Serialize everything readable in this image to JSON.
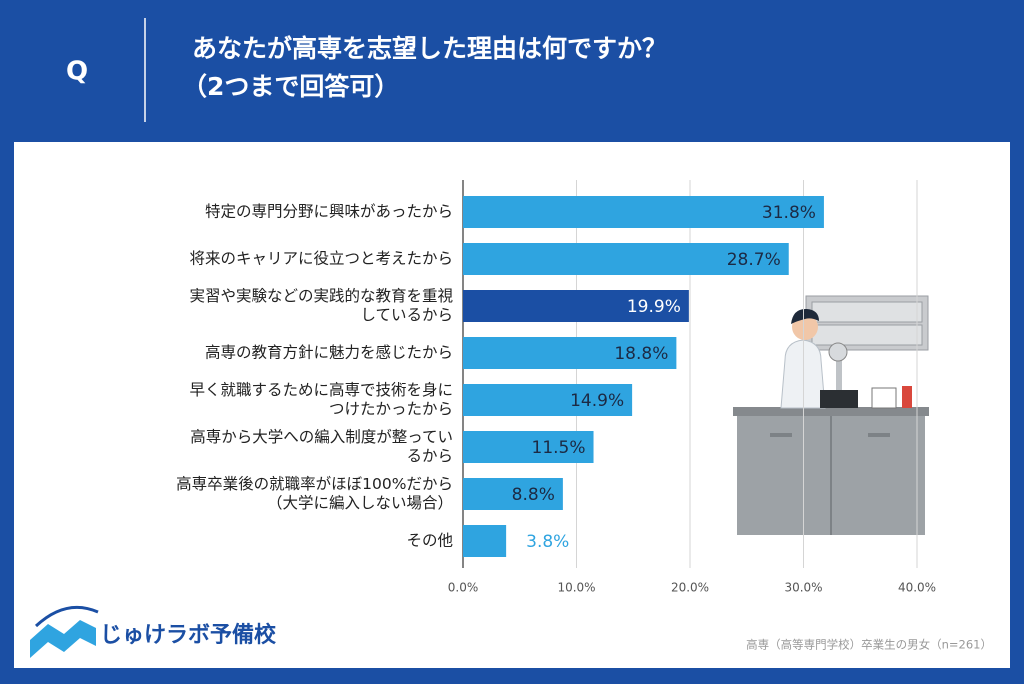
{
  "question_label": "Q",
  "brand": "じゅけラボ予備校",
  "note": "高専（高等専門学校）卒業生の男女（n=261）",
  "chart_data": {
    "type": "bar",
    "orientation": "horizontal",
    "title": "あなたが高専を志望した理由は何ですか？",
    "subtitle": "（2つまで回答可）",
    "categories": [
      "特定の専門分野に興味があったから",
      "将来のキャリアに役立つと考えたから",
      "実習や実験などの実践的な教育を重視\nしているから",
      "高専の教育方針に魅力を感じたから",
      "早く就職するために高専で技術を身に\nつけたかったから",
      "高専から大学への編入制度が整ってい\nるから",
      "高専卒業後の就職率がほぼ100%だから\n（大学に編入しない場合）",
      "その他"
    ],
    "values": [
      31.8,
      28.7,
      19.9,
      18.8,
      14.9,
      11.5,
      8.8,
      3.8
    ],
    "value_labels": [
      "31.8%",
      "28.7%",
      "19.9%",
      "18.8%",
      "14.9%",
      "11.5%",
      "8.8%",
      "3.8%"
    ],
    "colors": [
      "#2fa4e0",
      "#2fa4e0",
      "#1b4fa4",
      "#2fa4e0",
      "#2fa4e0",
      "#2fa4e0",
      "#2fa4e0",
      "#2fa4e0"
    ],
    "xlim": [
      0,
      40
    ],
    "xticks": [
      {
        "value": 0,
        "label": "0.0%"
      },
      {
        "value": 10,
        "label": "10.0%"
      },
      {
        "value": 20,
        "label": "20.0%"
      },
      {
        "value": 30,
        "label": "30.0%"
      },
      {
        "value": 40,
        "label": "40.0%"
      }
    ],
    "grid": true
  }
}
